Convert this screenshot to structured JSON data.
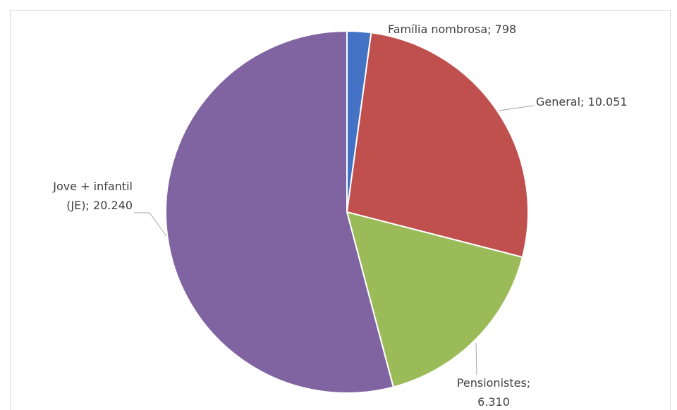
{
  "chart_data": {
    "type": "pie",
    "values": [
      798,
      10051,
      6310,
      20240
    ],
    "labels": [
      [
        "Família nombrosa; 798"
      ],
      [
        "General; 10.051"
      ],
      [
        "Pensionistes;",
        "6.310"
      ],
      [
        "Jove + infantil",
        "(JE); 20.240"
      ]
    ],
    "colors": [
      "#4472c4",
      "#c0504d",
      "#9bbb59",
      "#8064a2"
    ]
  }
}
